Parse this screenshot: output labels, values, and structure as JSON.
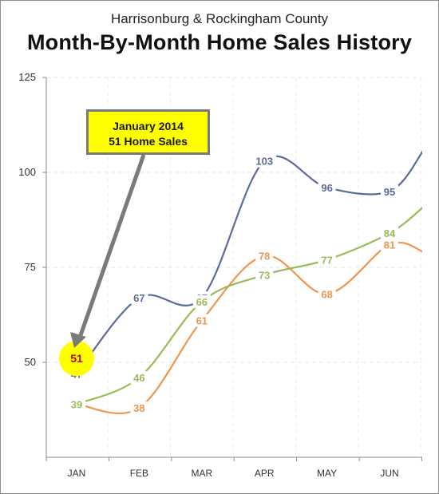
{
  "header": {
    "subtitle": "Harrisonburg & Rockingham County",
    "title": "Month-By-Month Home Sales History"
  },
  "annotation": {
    "line1": "January 2014",
    "line2": "51 Home Sales",
    "highlight_value": "51"
  },
  "colors": {
    "series_blue": "#5b6a9c",
    "series_orange": "#f0954e",
    "series_green": "#9bbb59",
    "callout_fill": "#ffff00",
    "highlight_fill": "#ffff00",
    "highlight_text": "#c00000"
  },
  "chart_data": {
    "type": "line",
    "categories": [
      "JAN",
      "FEB",
      "MAR",
      "APR",
      "MAY",
      "JUN"
    ],
    "ylim": [
      25,
      125
    ],
    "yticks": [
      50,
      75,
      100,
      125
    ],
    "grid": true,
    "smooth": true,
    "series": [
      {
        "color": "#5b6a9c",
        "values": [
          47,
          67,
          67,
          103,
          96,
          95
        ],
        "labels": [
          "47",
          "67",
          "67",
          "103",
          "96",
          "95"
        ]
      },
      {
        "color": "#f0954e",
        "values": [
          39,
          38,
          61,
          78,
          68,
          81
        ],
        "labels": [
          "",
          "38",
          "61",
          "78",
          "68",
          "81"
        ]
      },
      {
        "color": "#9bbb59",
        "values": [
          39,
          46,
          66,
          73,
          77,
          84
        ],
        "labels": [
          "39",
          "46",
          "66",
          "73",
          "77",
          "84"
        ]
      }
    ],
    "highlight": {
      "category": "JAN",
      "value": 51
    }
  }
}
